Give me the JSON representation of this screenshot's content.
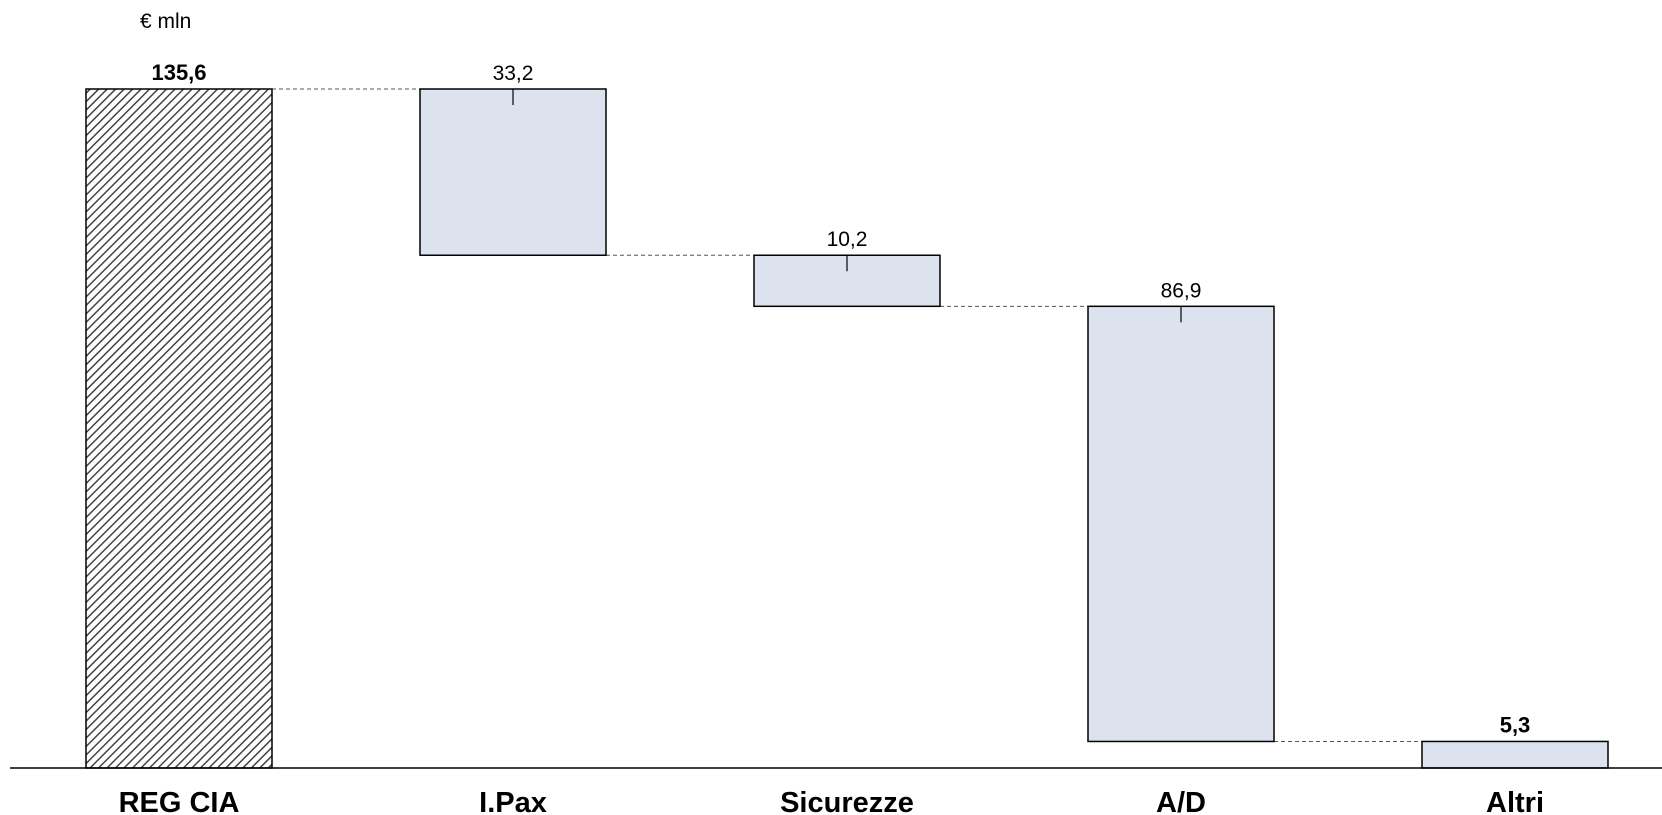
{
  "unit": "€ mln",
  "chart_data": {
    "type": "bar",
    "subtype": "waterfall",
    "title": "",
    "xlabel": "",
    "ylabel": "€ mln",
    "categories": [
      "REG CIA",
      "I.Pax",
      "Sicurezze",
      "A/D",
      "Altri"
    ],
    "values": [
      135.6,
      33.2,
      10.2,
      86.9,
      5.3
    ],
    "value_labels": [
      "135,6",
      "33,2",
      "10,2",
      "86,9",
      "5,3"
    ],
    "label_bold": [
      true,
      false,
      false,
      false,
      true
    ],
    "bar_kind": [
      "total",
      "step",
      "step",
      "step",
      "step"
    ],
    "ylim": [
      0,
      135.6
    ],
    "grid": false,
    "legend": "none",
    "colors": {
      "total_fill": "hatched",
      "step_fill": "#dce3ee",
      "stroke": "#000000"
    }
  }
}
